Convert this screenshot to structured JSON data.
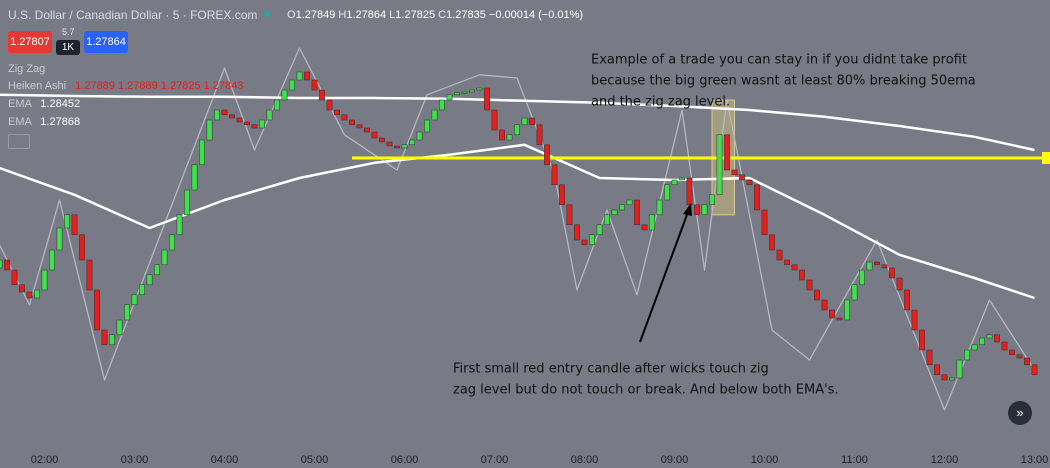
{
  "header": {
    "symbol": "U.S. Dollar / Canadian Dollar · 5 · FOREX.com",
    "ohlc": [
      {
        "label": "O",
        "value": 1.27849
      },
      {
        "label": "H",
        "value": 1.27864
      },
      {
        "label": "L",
        "value": 1.27825
      },
      {
        "label": "C",
        "value": 1.27835
      }
    ],
    "change": "−0.00014 (−0.01%)",
    "sell": 1.27807,
    "spread": 5.7,
    "size": "1K",
    "buy": 1.27864,
    "candle_legend": "Heiken Ashi",
    "candle_values": "1.27889 1.27889 1.27825 1.27843"
  },
  "chart_data": {
    "type": "candlestick",
    "categories": [
      null,
      null,
      null,
      null,
      null,
      null,
      "02:00",
      null,
      null,
      null,
      null,
      null,
      null,
      null,
      null,
      null,
      null,
      null,
      "03:00",
      null,
      null,
      null,
      null,
      null,
      null,
      null,
      null,
      null,
      null,
      null,
      "04:00",
      null,
      null,
      null,
      null,
      null,
      null,
      null,
      null,
      null,
      null,
      null,
      "05:00",
      null,
      null,
      null,
      null,
      null,
      null,
      null,
      null,
      null,
      null,
      null,
      "06:00",
      null,
      null,
      null,
      null,
      null,
      null,
      null,
      null,
      null,
      null,
      null,
      "07:00",
      null,
      null,
      null,
      null,
      null,
      null,
      null,
      null,
      null,
      null,
      null,
      "08:00",
      null,
      null,
      null,
      null,
      null,
      null,
      null,
      null,
      null,
      null,
      null,
      "09:00",
      null,
      null,
      null,
      null,
      null,
      null,
      null,
      null,
      null,
      null,
      null,
      "10:00",
      null,
      null,
      null,
      null,
      null,
      null,
      null,
      null,
      null,
      null,
      null,
      "11:00",
      null,
      null,
      null,
      null,
      null,
      null,
      null,
      null,
      null,
      null,
      null,
      "12:00",
      null,
      null,
      null,
      null,
      null,
      null,
      null,
      null,
      null,
      null,
      null,
      "13:00"
    ],
    "open": [
      1.2813,
      1.2815,
      1.28125,
      1.28088,
      1.2807,
      1.28055,
      1.28075,
      1.28125,
      1.28175,
      1.2823,
      1.28263,
      1.28213,
      1.2815,
      1.28075,
      1.27975,
      1.27938,
      1.27963,
      1.28,
      1.28038,
      1.28063,
      1.28088,
      1.28113,
      1.28138,
      1.28175,
      1.28213,
      1.28263,
      1.28325,
      1.28388,
      1.2845,
      1.285,
      1.28525,
      1.28513,
      1.28505,
      1.28495,
      1.28488,
      1.2848,
      1.285,
      1.28525,
      1.2855,
      1.28575,
      1.286,
      1.2862,
      1.286,
      1.28575,
      1.2855,
      1.28525,
      1.28513,
      1.285,
      1.28488,
      1.2848,
      1.2847,
      1.28455,
      1.28445,
      1.28435,
      1.2843,
      1.28438,
      1.2845,
      1.2847,
      1.285,
      1.28525,
      1.2855,
      1.28563,
      1.28568,
      1.2857,
      1.28575,
      1.2858,
      1.28525,
      1.28475,
      1.2845,
      1.28463,
      1.28488,
      1.28505,
      1.28488,
      1.28438,
      1.28388,
      1.28338,
      1.28288,
      1.28238,
      1.282,
      1.28188,
      1.28213,
      1.28238,
      1.28263,
      1.28275,
      1.28288,
      1.283,
      1.28238,
      1.28225,
      1.28263,
      1.283,
      1.28338,
      1.2835,
      1.28355,
      1.28288,
      1.28263,
      1.28288,
      1.28313,
      1.28463,
      1.28375,
      1.28363,
      1.2835,
      1.28338,
      1.28275,
      1.28213,
      1.28175,
      1.2815,
      1.28138,
      1.28125,
      1.281,
      1.28075,
      1.2805,
      1.28025,
      1.28005,
      1.28,
      1.2805,
      1.28088,
      1.28125,
      1.28145,
      1.28138,
      1.2813,
      1.28105,
      1.28075,
      1.28025,
      1.27975,
      1.27925,
      1.27888,
      1.27863,
      1.2785,
      1.27855,
      1.279,
      1.27925,
      1.27938,
      1.27955,
      1.27963,
      1.27945,
      1.27925,
      1.27913,
      1.27905,
      1.27888
    ],
    "close": [
      1.2815,
      1.28125,
      1.28088,
      1.2807,
      1.28055,
      1.28075,
      1.28125,
      1.28175,
      1.2823,
      1.28263,
      1.28213,
      1.2815,
      1.28075,
      1.27975,
      1.27938,
      1.27963,
      1.28,
      1.28038,
      1.28063,
      1.28088,
      1.28113,
      1.28138,
      1.28175,
      1.28213,
      1.28263,
      1.28325,
      1.28388,
      1.2845,
      1.285,
      1.28525,
      1.28513,
      1.28505,
      1.28495,
      1.28488,
      1.2848,
      1.285,
      1.28525,
      1.2855,
      1.28575,
      1.286,
      1.2862,
      1.286,
      1.28575,
      1.2855,
      1.28525,
      1.28513,
      1.285,
      1.28488,
      1.2848,
      1.2847,
      1.28455,
      1.28445,
      1.28435,
      1.2843,
      1.28438,
      1.2845,
      1.2847,
      1.285,
      1.28525,
      1.2855,
      1.28563,
      1.28568,
      1.2857,
      1.28575,
      1.2858,
      1.28525,
      1.28475,
      1.2845,
      1.28463,
      1.28488,
      1.28505,
      1.28488,
      1.28438,
      1.28388,
      1.28338,
      1.28288,
      1.28238,
      1.282,
      1.28188,
      1.28213,
      1.28238,
      1.28263,
      1.28275,
      1.28288,
      1.283,
      1.28238,
      1.28225,
      1.28263,
      1.283,
      1.28338,
      1.2835,
      1.28355,
      1.28288,
      1.28263,
      1.28288,
      1.28313,
      1.28463,
      1.28375,
      1.28363,
      1.2835,
      1.28338,
      1.28275,
      1.28213,
      1.28175,
      1.2815,
      1.28138,
      1.28125,
      1.281,
      1.28075,
      1.2805,
      1.28025,
      1.28005,
      1.28,
      1.2805,
      1.28088,
      1.28125,
      1.28145,
      1.28138,
      1.2813,
      1.28105,
      1.28075,
      1.28025,
      1.27975,
      1.27925,
      1.27888,
      1.27863,
      1.2785,
      1.27855,
      1.279,
      1.27925,
      1.27938,
      1.27955,
      1.27963,
      1.27945,
      1.27925,
      1.27913,
      1.27905,
      1.27888,
      1.27863
    ],
    "up_color": "#3fe04a",
    "down_color": "#e3201c",
    "ylim": [
      1.2768,
      1.288
    ],
    "series": [
      {
        "name": "Zig Zag",
        "color": "#b4b7bf",
        "x": [
          0,
          4,
          8,
          14,
          30,
          34,
          40,
          46,
          53,
          57,
          64,
          69,
          74,
          77,
          81,
          85,
          91,
          94,
          97,
          103,
          108,
          117,
          126,
          132,
          138
        ],
        "values": [
          1.28188,
          1.28038,
          1.283,
          1.2785,
          1.2863,
          1.28425,
          1.2868,
          1.28463,
          1.28375,
          1.28563,
          1.28613,
          1.28605,
          1.28363,
          1.28075,
          1.28275,
          1.28063,
          1.28525,
          1.28125,
          1.2855,
          1.27975,
          1.279,
          1.282,
          1.27775,
          1.2805,
          1.27875
        ]
      },
      {
        "name": "EMA",
        "color": "#ffffff",
        "legend_value": 1.28452,
        "x": [
          0,
          10,
          20,
          30,
          40,
          50,
          60,
          70,
          80,
          90,
          100,
          110,
          120,
          130,
          138
        ],
        "values": [
          1.28563,
          1.2856,
          1.28558,
          1.28558,
          1.28555,
          1.28555,
          1.28553,
          1.28548,
          1.28543,
          1.28535,
          1.28525,
          1.28508,
          1.28485,
          1.28458,
          1.28425
        ]
      },
      {
        "name": "EMA",
        "color": "#ffffff",
        "legend_value": 1.27868,
        "x": [
          0,
          10,
          20,
          30,
          40,
          50,
          60,
          70,
          80,
          90,
          100,
          110,
          120,
          130,
          138
        ],
        "values": [
          1.2838,
          1.28313,
          1.2823,
          1.283,
          1.28355,
          1.28393,
          1.28413,
          1.28438,
          1.28355,
          1.2835,
          1.28355,
          1.28263,
          1.28163,
          1.28105,
          1.28055
        ]
      }
    ],
    "hline": {
      "value": 1.28405,
      "x_start": 47,
      "color": "#ffff00"
    },
    "box": {
      "x": [
        95,
        98
      ],
      "y": [
        1.28263,
        1.2855
      ]
    },
    "annotations": [
      {
        "lines": [
          "Example of a trade you can stay in if you didnt take profit",
          "because the big green wasnt at least 80% breaking 50ema",
          "and the zig zag level."
        ]
      },
      {
        "lines": [
          "First small red entry candle after wicks touch zig",
          "zag level but do not touch or break. And below both EMA's."
        ]
      }
    ]
  }
}
